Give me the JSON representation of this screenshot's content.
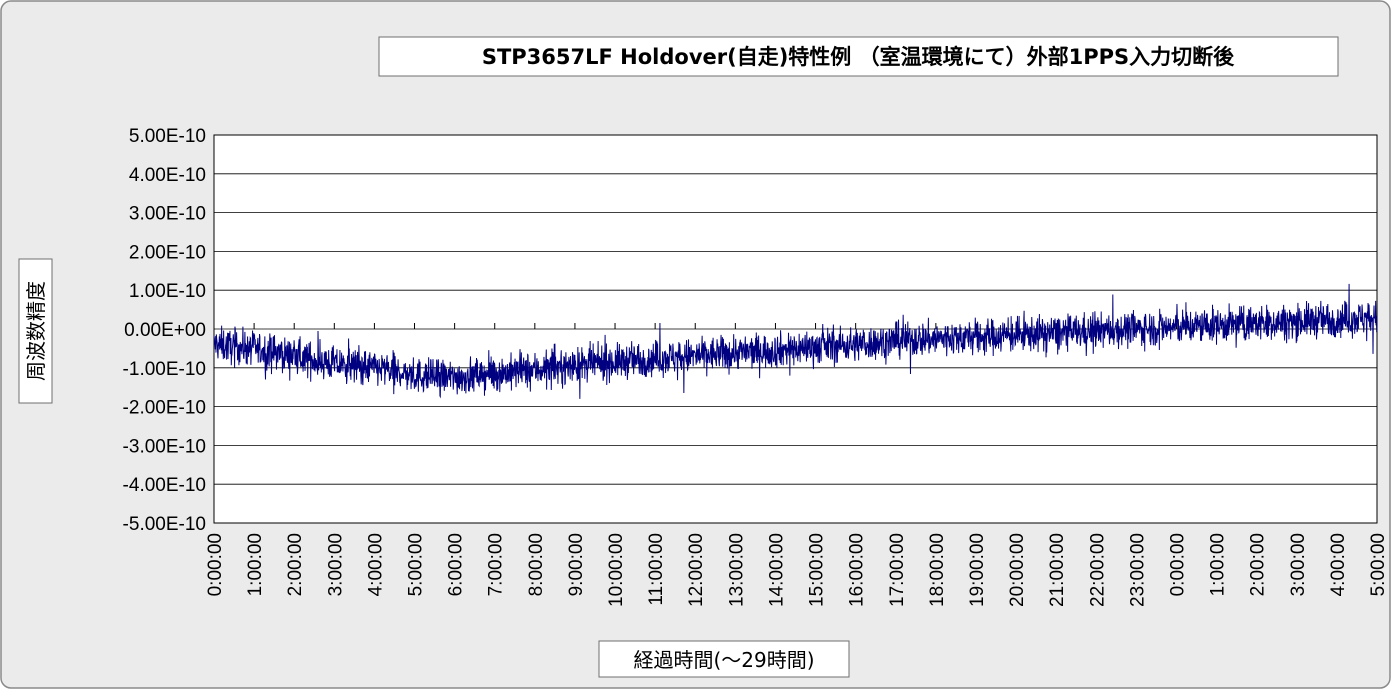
{
  "chart_data": {
    "type": "line",
    "title": "STP3657LF  Holdover(自走)特性例 （室温環境にて）外部1PPS入力切断後",
    "xlabel": "経過時間(～29時間)",
    "ylabel": "周波数精度",
    "ylim": [
      -5e-10,
      5e-10
    ],
    "y_ticks": [
      5e-10,
      4e-10,
      3e-10,
      2e-10,
      1e-10,
      0,
      -1e-10,
      -2e-10,
      -3e-10,
      -4e-10,
      -5e-10
    ],
    "y_tick_labels": [
      "5.00E-10",
      "4.00E-10",
      "3.00E-10",
      "2.00E-10",
      "1.00E-10",
      "0.00E+00",
      "-1.00E-10",
      "-2.00E-10",
      "-3.00E-10",
      "-4.00E-10",
      "-5.00E-10"
    ],
    "x_tick_labels": [
      "0:00:00",
      "1:00:00",
      "2:00:00",
      "3:00:00",
      "4:00:00",
      "5:00:00",
      "6:00:00",
      "7:00:00",
      "8:00:00",
      "9:00:00",
      "10:00:00",
      "11:00:00",
      "12:00:00",
      "13:00:00",
      "14:00:00",
      "15:00:00",
      "16:00:00",
      "17:00:00",
      "18:00:00",
      "19:00:00",
      "20:00:00",
      "21:00:00",
      "22:00:00",
      "23:00:00",
      "0:00:00",
      "1:00:00",
      "2:00:00",
      "3:00:00",
      "4:00:00",
      "5:00:00"
    ],
    "x_range_hours": [
      0,
      29
    ],
    "grid": true,
    "series_color": "#000080",
    "series": [
      {
        "x_hours": [
          0,
          1,
          2,
          3,
          4,
          5,
          6,
          7,
          8,
          9,
          10,
          11,
          12,
          13,
          14,
          15,
          16,
          17,
          18,
          19,
          20,
          21,
          22,
          23,
          24,
          25,
          26,
          27,
          28,
          29
        ],
        "values": [
          -4e-11,
          -5e-11,
          -7e-11,
          -9e-11,
          -1e-10,
          -1.2e-10,
          -1.25e-10,
          -1.15e-10,
          -1.05e-10,
          -9.5e-11,
          -8.5e-11,
          -7.5e-11,
          -7e-11,
          -6e-11,
          -5.5e-11,
          -4.5e-11,
          -4e-11,
          -3e-11,
          -2.5e-11,
          -2e-11,
          -1.5e-11,
          -1e-11,
          -5e-12,
          0,
          5e-12,
          1e-11,
          1.5e-11,
          2e-11,
          2.5e-11,
          3e-11
        ]
      }
    ],
    "noise_amplitude": 4e-11
  }
}
